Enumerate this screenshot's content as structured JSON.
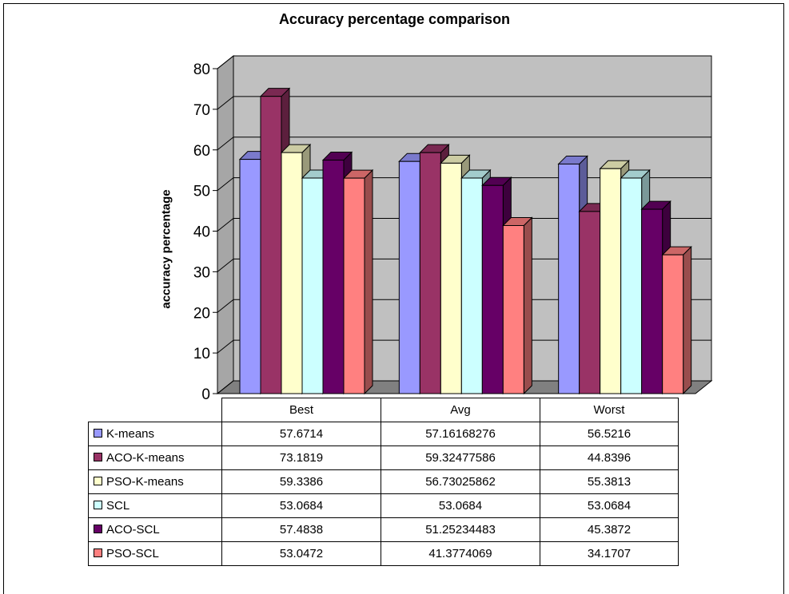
{
  "chart_data": {
    "type": "bar",
    "title": "Accuracy percentage comparison",
    "xlabel": "",
    "ylabel": "accuracy percentage",
    "ylim": [
      0,
      80
    ],
    "yticks": [
      "0",
      "10",
      "20",
      "30",
      "40",
      "50",
      "60",
      "70",
      "80"
    ],
    "grid": true,
    "legend": "table",
    "categories": [
      "Best",
      "Avg",
      "Worst"
    ],
    "series": [
      {
        "name": "K-means",
        "color": "#9999ff",
        "values": [
          57.6714,
          57.16168276,
          56.5216
        ],
        "labels": [
          "57.6714",
          "57.16168276",
          "56.5216"
        ]
      },
      {
        "name": "ACO-K-means",
        "color": "#993366",
        "values": [
          73.1819,
          59.32477586,
          44.8396
        ],
        "labels": [
          "73.1819",
          "59.32477586",
          "44.8396"
        ]
      },
      {
        "name": "PSO-K-means",
        "color": "#ffffcc",
        "values": [
          59.3386,
          56.73025862,
          55.3813
        ],
        "labels": [
          "59.3386",
          "56.73025862",
          "55.3813"
        ]
      },
      {
        "name": "SCL",
        "color": "#ccffff",
        "values": [
          53.0684,
          53.0684,
          53.0684
        ],
        "labels": [
          "53.0684",
          "53.0684",
          "53.0684"
        ]
      },
      {
        "name": "ACO-SCL",
        "color": "#660066",
        "values": [
          57.4838,
          51.25234483,
          45.3872
        ],
        "labels": [
          "57.4838",
          "51.25234483",
          "45.3872"
        ]
      },
      {
        "name": "PSO-SCL",
        "color": "#ff8080",
        "values": [
          53.0472,
          41.3774069,
          34.1707
        ],
        "labels": [
          "53.0472",
          "41.3774069",
          "34.1707"
        ]
      }
    ],
    "colors": {
      "wall": "#c0c0c0",
      "floor": "#808080",
      "grid": "#000000"
    }
  }
}
